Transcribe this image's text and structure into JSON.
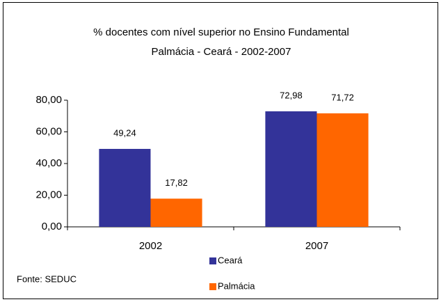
{
  "chart_data": {
    "type": "bar",
    "title": "% docentes com nível superior no Ensino Fundamental",
    "subtitle": "Palmácia - Ceará - 2002-2007",
    "categories": [
      "2002",
      "2007"
    ],
    "series": [
      {
        "name": "Ceará",
        "color": "#333399",
        "values": [
          49.24,
          72.98
        ],
        "value_labels": [
          "49,24",
          "72,98"
        ]
      },
      {
        "name": "Palmácia",
        "color": "#ff6600",
        "values": [
          17.82,
          71.72
        ],
        "value_labels": [
          "17,82",
          "71,72"
        ]
      }
    ],
    "ylim": [
      0,
      80
    ],
    "yticks": [
      {
        "value": 0,
        "label": "0,00"
      },
      {
        "value": 20,
        "label": "20,00"
      },
      {
        "value": 40,
        "label": "40,00"
      },
      {
        "value": 60,
        "label": "60,00"
      },
      {
        "value": 80,
        "label": "80,00"
      }
    ],
    "grid": false,
    "source": "Fonte: SEDUC"
  }
}
